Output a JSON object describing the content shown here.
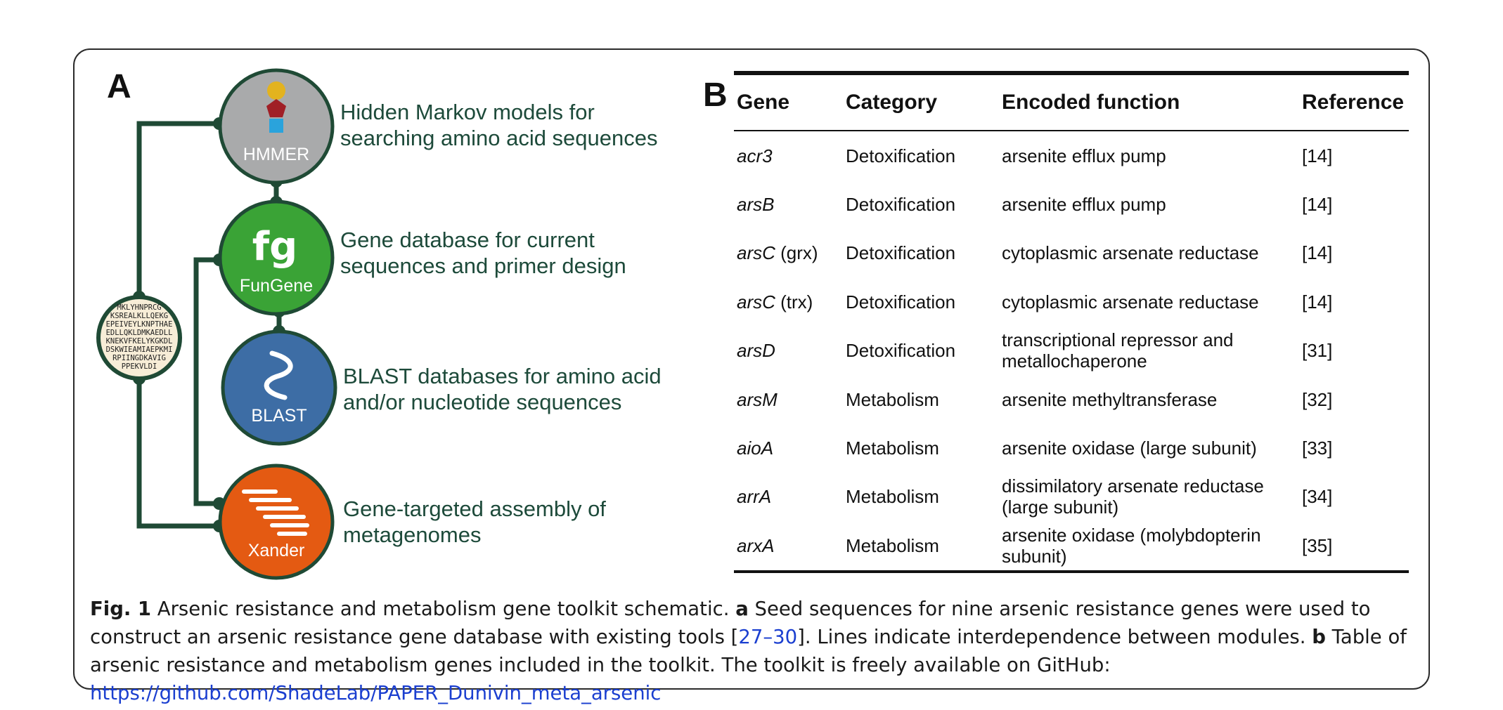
{
  "panel_a": {
    "label": "A",
    "seq_lines": [
      "MKLYHNPRCG",
      "KSREALKLLQEKG",
      "EPEIVEYLKNPTHAE",
      "EDLLQKLDMKAEDLL",
      "KNEKVFKELYKGKDL",
      "DSKWIEAMIAEPKMI",
      "RPIINGDKAVIG",
      "PPEKVLDI"
    ],
    "tools": [
      {
        "name": "HMMER",
        "description": [
          "Hidden Markov models for",
          "searching amino acid sequences"
        ],
        "color": "#a9aaab"
      },
      {
        "name": "FunGene",
        "logo": "fg",
        "description": [
          "Gene database for current",
          "sequences and primer design"
        ],
        "color": "#3aa336"
      },
      {
        "name": "BLAST",
        "description": [
          "BLAST databases for amino acid",
          "and/or nucleotide sequences"
        ],
        "color": "#3d6da5"
      },
      {
        "name": "Xander",
        "description": [
          "Gene-targeted assembly of",
          "metagenomes"
        ],
        "color": "#e45a12"
      }
    ],
    "line_color": "#1f4a35"
  },
  "panel_b": {
    "label": "B",
    "headers": [
      "Gene",
      "Category",
      "Encoded function",
      "Reference"
    ],
    "rows": [
      {
        "gene": "acr3",
        "qualifier": "",
        "category": "Detoxification",
        "function": [
          "arsenite efflux pump"
        ],
        "reference": "[14]"
      },
      {
        "gene": "arsB",
        "qualifier": "",
        "category": "Detoxification",
        "function": [
          "arsenite efflux pump"
        ],
        "reference": "[14]"
      },
      {
        "gene": "arsC",
        "qualifier": " (grx)",
        "category": "Detoxification",
        "function": [
          "cytoplasmic arsenate reductase"
        ],
        "reference": "[14]"
      },
      {
        "gene": "arsC",
        "qualifier": " (trx)",
        "category": "Detoxification",
        "function": [
          "cytoplasmic arsenate reductase"
        ],
        "reference": "[14]"
      },
      {
        "gene": "arsD",
        "qualifier": "",
        "category": "Detoxification",
        "function": [
          "transcriptional repressor and",
          "metallochaperone"
        ],
        "reference": "[31]"
      },
      {
        "gene": "arsM",
        "qualifier": "",
        "category": "Metabolism",
        "function": [
          "arsenite methyltransferase"
        ],
        "reference": "[32]"
      },
      {
        "gene": "aioA",
        "qualifier": "",
        "category": "Metabolism",
        "function": [
          "arsenite oxidase (large subunit)"
        ],
        "reference": "[33]"
      },
      {
        "gene": "arrA",
        "qualifier": "",
        "category": "Metabolism",
        "function": [
          "dissimilatory arsenate reductase",
          "(large subunit)"
        ],
        "reference": "[34]"
      },
      {
        "gene": "arxA",
        "qualifier": "",
        "category": "Metabolism",
        "function": [
          "arsenite oxidase (molybdopterin",
          "subunit)"
        ],
        "reference": "[35]"
      }
    ]
  },
  "caption": {
    "fig_label": "Fig. 1",
    "title": " Arsenic resistance and metabolism gene toolkit schematic. ",
    "part_a_label": "a",
    "part_a_text": " Seed sequences for nine arsenic resistance genes were used to construct an arsenic resistance gene database with existing tools [",
    "citation": "27–30",
    "part_a_text_end": "]. Lines indicate interdependence between modules. ",
    "part_b_label": "b",
    "part_b_text": " Table of arsenic resistance and metabolism genes included in the toolkit. The toolkit is freely available on GitHub: ",
    "url": "https://github.com/ShadeLab/PAPER_Dunivin_meta_arsenic"
  }
}
